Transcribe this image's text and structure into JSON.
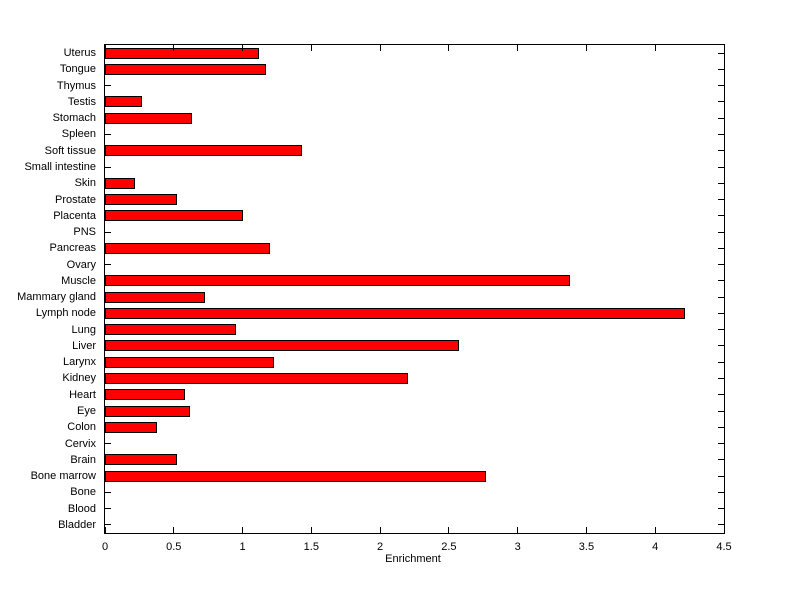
{
  "chart_data": {
    "type": "bar",
    "orientation": "horizontal",
    "title": "",
    "xlabel": "Enrichment",
    "ylabel": "",
    "xlim": [
      0,
      4.5
    ],
    "xticks": [
      0,
      0.5,
      1,
      1.5,
      2,
      2.5,
      3,
      3.5,
      4,
      4.5
    ],
    "xtick_labels": [
      "0",
      "0.5",
      "1",
      "1.5",
      "2",
      "2.5",
      "3",
      "3.5",
      "4",
      "4.5"
    ],
    "grid": false,
    "legend": null,
    "bar_color": "#ff0000",
    "bar_edge_color": "#000000",
    "categories": [
      "Uterus",
      "Tongue",
      "Thymus",
      "Testis",
      "Stomach",
      "Spleen",
      "Soft tissue",
      "Small intestine",
      "Skin",
      "Prostate",
      "Placenta",
      "PNS",
      "Pancreas",
      "Ovary",
      "Muscle",
      "Mammary gland",
      "Lymph node",
      "Lung",
      "Liver",
      "Larynx",
      "Kidney",
      "Heart",
      "Eye",
      "Colon",
      "Cervix",
      "Brain",
      "Bone marrow",
      "Bone",
      "Blood",
      "Bladder"
    ],
    "categories_order": "top-to-bottom",
    "values": [
      1.12,
      1.17,
      0,
      0.27,
      0.63,
      0,
      1.43,
      0,
      0.22,
      0.52,
      1.0,
      0,
      1.2,
      0,
      3.38,
      0.73,
      4.22,
      0.95,
      2.57,
      1.23,
      2.2,
      0.58,
      0.62,
      0.38,
      0,
      0.52,
      2.77,
      0,
      0,
      0
    ]
  }
}
